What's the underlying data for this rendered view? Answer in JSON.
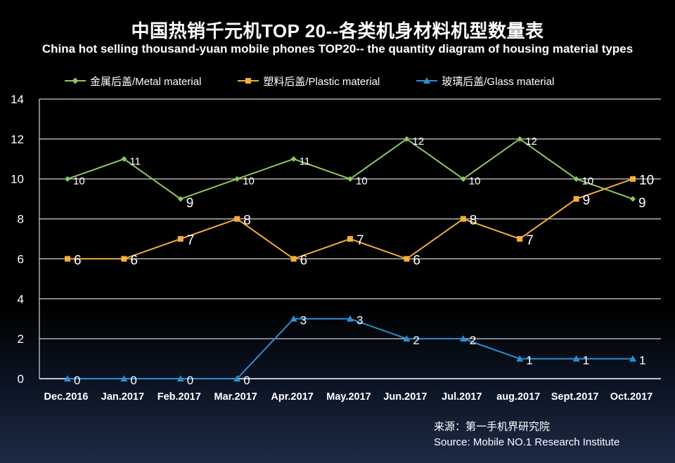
{
  "title_cn": "中国热销千元机TOP 20--各类机身材料机型数量表",
  "title_en": "China hot selling thousand-yuan mobile phones TOP20-- the quantity diagram of housing material types",
  "source_cn": "来源：第一手机界研究院",
  "source_en": "Source: Mobile NO.1 Research Institute",
  "colors": {
    "metal": "#8dc861",
    "plastic": "#f5ae3a",
    "glass": "#2d8fd0",
    "grid": "#ffffff",
    "text": "#ffffff"
  },
  "chart_data": {
    "type": "line",
    "categories": [
      "Dec.2016",
      "Jan.2017",
      "Feb.2017",
      "Mar.2017",
      "Apr.2017",
      "May.2017",
      "Jun.2017",
      "Jul.2017",
      "aug.2017",
      "Sept.2017",
      "Oct.2017"
    ],
    "ylim": [
      0,
      14
    ],
    "yticks": [
      0,
      2,
      4,
      6,
      8,
      10,
      12,
      14
    ],
    "grid": true,
    "legend_position": "top",
    "series": [
      {
        "key": "metal",
        "name": "金属后盖/Metal material",
        "marker": "diamond",
        "values": [
          10,
          11,
          9,
          10,
          11,
          10,
          12,
          10,
          12,
          10,
          9
        ]
      },
      {
        "key": "plastic",
        "name": "塑料后盖/Plastic material",
        "marker": "square",
        "values": [
          6,
          6,
          7,
          8,
          6,
          7,
          6,
          8,
          7,
          9,
          10
        ]
      },
      {
        "key": "glass",
        "name": "玻璃后盖/Glass material",
        "marker": "triangle",
        "values": [
          0,
          0,
          0,
          0,
          3,
          3,
          2,
          2,
          1,
          1,
          1
        ]
      }
    ]
  }
}
